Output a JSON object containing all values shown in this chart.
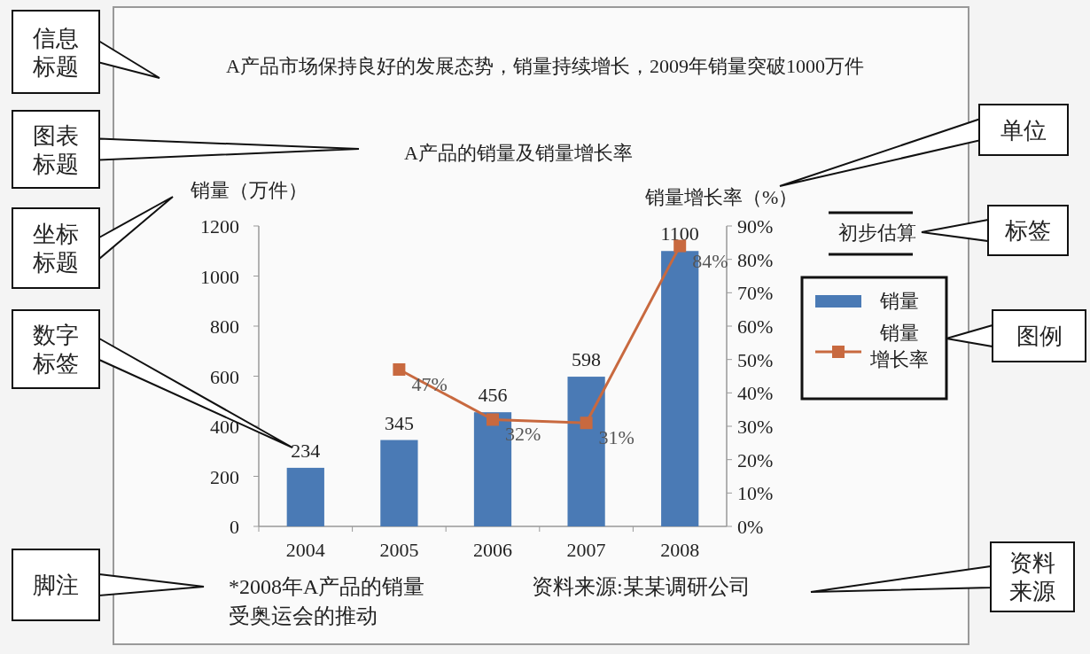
{
  "chart_data": {
    "type": "bar",
    "title": "A产品的销量及销量增长率",
    "subtitle": "A产品市场保持良好的发展态势，销量持续增长，2009年销量突破1000万件",
    "ylabel": "销量（万件）",
    "y2label": "销量增长率（%）",
    "categories": [
      "2004",
      "2005",
      "2006",
      "2007",
      "2008"
    ],
    "series": [
      {
        "name": "销量",
        "color": "#4a7ab5",
        "values": [
          234,
          345,
          456,
          598,
          1100
        ],
        "value_labels": [
          "234",
          "345",
          "456",
          "598",
          "1100"
        ]
      },
      {
        "name": "销量增长率",
        "type": "line",
        "axis": "y2",
        "color": "#c8693f",
        "values": [
          null,
          47,
          32,
          31,
          84
        ],
        "value_labels": [
          null,
          "47%",
          "32%",
          "31%",
          "84%"
        ]
      }
    ],
    "ylim": [
      0,
      1200
    ],
    "yticks": [
      0,
      200,
      400,
      600,
      800,
      1000,
      1200
    ],
    "y2lim": [
      0,
      90
    ],
    "y2ticks": [
      {
        "value": 0,
        "label": "0%"
      },
      {
        "value": 10,
        "label": "10%"
      },
      {
        "value": 20,
        "label": "20%"
      },
      {
        "value": 30,
        "label": "30%"
      },
      {
        "value": 40,
        "label": "40%"
      },
      {
        "value": 50,
        "label": "50%"
      },
      {
        "value": 60,
        "label": "60%"
      },
      {
        "value": 70,
        "label": "70%"
      },
      {
        "value": 80,
        "label": "80%"
      },
      {
        "value": 90,
        "label": "90%"
      }
    ],
    "marker": "square",
    "legend": "right",
    "grid": false,
    "annotations": [
      "*2008年A产品的销量受奥运会的推动",
      "资料来源:某某调研公司",
      "初步估算",
      "信息标题",
      "图表标题",
      "坐标标题",
      "数字标签",
      "脚注",
      "单位",
      "标签",
      "图例",
      "资料来源"
    ]
  }
}
